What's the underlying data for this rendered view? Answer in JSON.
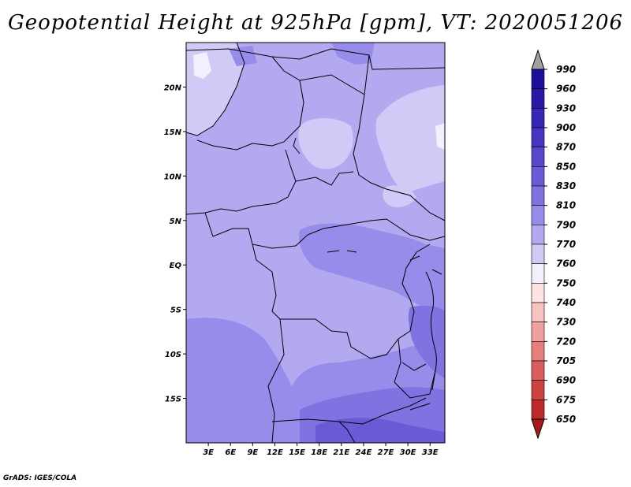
{
  "title": "Geopotential Height at 925hPa [gpm], VT: 2020051206",
  "credit": "GrADS: IGES/COLA",
  "map": {
    "lon_range": [
      0,
      35
    ],
    "lat_range": [
      -20,
      25
    ],
    "lon_ticks": [
      "3E",
      "6E",
      "9E",
      "12E",
      "15E",
      "18E",
      "21E",
      "24E",
      "27E",
      "30E",
      "33E"
    ],
    "lon_tick_values": [
      3,
      6,
      9,
      12,
      15,
      18,
      21,
      24,
      27,
      30,
      33
    ],
    "lat_ticks": [
      "20N",
      "15N",
      "10N",
      "5N",
      "EQ",
      "5S",
      "10S",
      "15S"
    ],
    "lat_tick_values": [
      20,
      15,
      10,
      5,
      0,
      -5,
      -10,
      -15
    ]
  },
  "colorbar": {
    "labels": [
      "990",
      "960",
      "930",
      "900",
      "870",
      "850",
      "830",
      "810",
      "790",
      "770",
      "760",
      "750",
      "740",
      "730",
      "720",
      "705",
      "690",
      "675",
      "650"
    ],
    "colors": [
      "#1a0f99",
      "#2818a8",
      "#3526b6",
      "#4535c2",
      "#5647cc",
      "#6a5ad6",
      "#8072e0",
      "#988cea",
      "#b3a9f0",
      "#d0caf6",
      "#f2f0fc",
      "#fde4e2",
      "#f8c2c0",
      "#f0a09e",
      "#e67e7c",
      "#db5e5c",
      "#cd4140",
      "#bb2a28",
      "#a81815"
    ],
    "top_arrow_color": "#a0a0a0",
    "bottom_arrow_color": "#a81815"
  }
}
